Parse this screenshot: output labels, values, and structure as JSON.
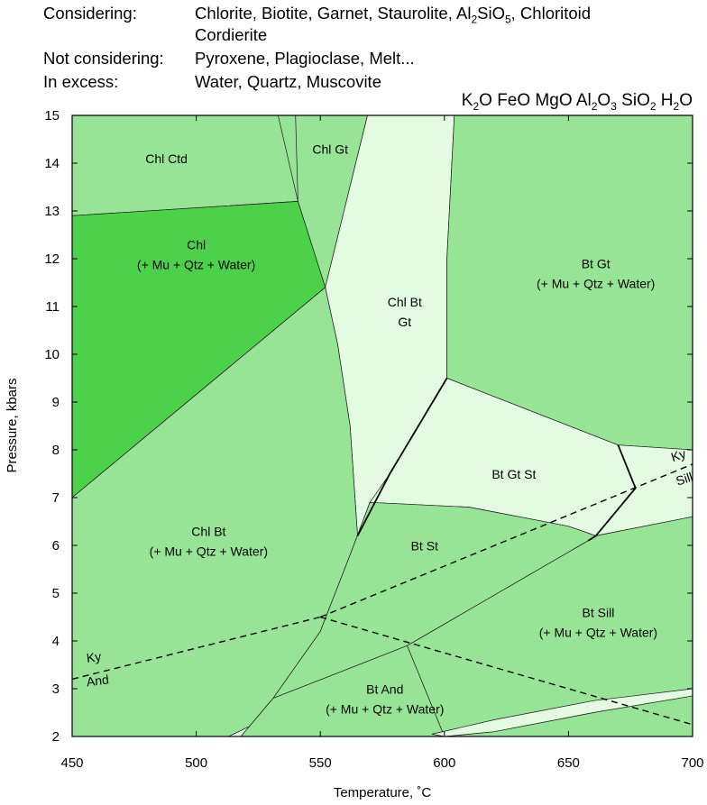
{
  "header": {
    "considering_label": "Considering:",
    "considering_values": "Chlorite, Biotite, Garnet, Staurolite, Al2SiO5, Chloritoid",
    "considering_values_line2": "Cordierite",
    "not_considering_label": "Not considering:",
    "not_considering_values": "Pyroxene, Plagioclase, Melt...",
    "in_excess_label": "In excess:",
    "in_excess_values": "Water, Quartz, Muscovite",
    "chemical_system": "K2O FeO MgO Al2O3 SiO2 H2O"
  },
  "colors": {
    "light_green": "#98e496",
    "pale_green": "#e3fbe0",
    "bright_green": "#4dd14b",
    "line": "#000000"
  },
  "chart_data": {
    "type": "area",
    "title": "",
    "xlabel": "Temperature, ˚C",
    "ylabel": "Pressure, kbars",
    "xlim": [
      450,
      700
    ],
    "ylim": [
      2,
      15
    ],
    "xticks": [
      450,
      500,
      550,
      600,
      650,
      700
    ],
    "yticks": [
      2,
      3,
      4,
      5,
      6,
      7,
      8,
      9,
      10,
      11,
      12,
      13,
      14,
      15
    ],
    "grid": false,
    "fields": [
      {
        "name": "chl-ctd",
        "label_lines": [
          "Chl Ctd"
        ],
        "label_at": [
          488,
          14.0
        ],
        "color": "light_green",
        "polygon": [
          [
            450,
            15
          ],
          [
            533,
            15
          ],
          [
            541,
            13.2
          ],
          [
            450,
            12.9
          ]
        ]
      },
      {
        "name": "chl-gt",
        "label_lines": [
          "Chl Gt"
        ],
        "label_at": [
          554,
          14.2
        ],
        "color": "light_green",
        "polygon": [
          [
            540,
            15
          ],
          [
            569,
            15
          ],
          [
            552,
            11.4
          ],
          [
            541,
            13.2
          ]
        ]
      },
      {
        "name": "chl",
        "label_lines": [
          "Chl",
          "(+ Mu + Qtz + Water)"
        ],
        "label_at": [
          500,
          12.2
        ],
        "color": "bright_green",
        "polygon": [
          [
            450,
            12.9
          ],
          [
            541,
            13.2
          ],
          [
            552,
            11.4
          ],
          [
            450,
            7.0
          ]
        ]
      },
      {
        "name": "chl-bt-gt",
        "label_lines": [
          "Chl Bt",
          "Gt"
        ],
        "label_at": [
          584,
          11.0
        ],
        "color": "pale_green",
        "polygon": [
          [
            569,
            15
          ],
          [
            604,
            15
          ],
          [
            601,
            12
          ],
          [
            601,
            9.5
          ],
          [
            578,
            7.5
          ],
          [
            565,
            6.2
          ],
          [
            562,
            8.5
          ],
          [
            557,
            10.2
          ],
          [
            552,
            11.4
          ]
        ]
      },
      {
        "name": "bt-gt",
        "label_lines": [
          "Bt Gt",
          "(+ Mu + Qtz + Water)"
        ],
        "label_at": [
          661,
          11.8
        ],
        "color": "light_green",
        "polygon": [
          [
            604,
            15
          ],
          [
            700,
            15
          ],
          [
            700,
            8.0
          ],
          [
            670,
            8.1
          ],
          [
            601,
            9.5
          ],
          [
            601,
            12
          ]
        ]
      },
      {
        "name": "bt-gt-st",
        "label_lines": [
          "Bt Gt St"
        ],
        "label_at": [
          628,
          7.4
        ],
        "color": "pale_green",
        "polygon": [
          [
            601,
            9.5
          ],
          [
            670,
            8.1
          ],
          [
            677,
            7.2
          ],
          [
            661,
            6.2
          ],
          [
            650,
            6.4
          ],
          [
            610,
            6.8
          ],
          [
            570,
            6.9
          ],
          [
            578,
            7.5
          ]
        ]
      },
      {
        "name": "ky-sill-field",
        "label_lines": [],
        "label_at": [
          690,
          7.0
        ],
        "color": "pale_green",
        "polygon": [
          [
            670,
            8.1
          ],
          [
            700,
            8.0
          ],
          [
            700,
            6.6
          ],
          [
            661,
            6.2
          ],
          [
            677,
            7.2
          ]
        ]
      },
      {
        "name": "chl-bt",
        "label_lines": [
          "Chl Bt",
          "(+ Mu + Qtz + Water)"
        ],
        "label_at": [
          505,
          6.2
        ],
        "color": "light_green",
        "polygon": [
          [
            450,
            7.0
          ],
          [
            552,
            11.4
          ],
          [
            557,
            10.2
          ],
          [
            562,
            8.5
          ],
          [
            565,
            6.2
          ],
          [
            570,
            6.9
          ],
          [
            565,
            6.0
          ],
          [
            555,
            4.5
          ],
          [
            545,
            3.3
          ],
          [
            533,
            2.5
          ],
          [
            513,
            2.0
          ],
          [
            450,
            2.0
          ]
        ]
      },
      {
        "name": "chl-bt-and-sliver",
        "label_lines": [],
        "label_at": [
          540,
          3.5
        ],
        "color": "pale_green",
        "polygon": [
          [
            570,
            6.9
          ],
          [
            565,
            6.0
          ],
          [
            555,
            4.5
          ],
          [
            545,
            3.3
          ],
          [
            533,
            2.5
          ],
          [
            513,
            2.0
          ],
          [
            518,
            2.0
          ],
          [
            531,
            2.8
          ],
          [
            550,
            4.2
          ],
          [
            562,
            5.8
          ]
        ]
      },
      {
        "name": "bt-st",
        "label_lines": [
          "Bt St"
        ],
        "label_at": [
          592,
          5.9
        ],
        "color": "light_green",
        "polygon": [
          [
            570,
            6.9
          ],
          [
            610,
            6.8
          ],
          [
            650,
            6.4
          ],
          [
            661,
            6.2
          ],
          [
            658,
            6.1
          ],
          [
            585,
            3.9
          ],
          [
            531,
            2.8
          ],
          [
            550,
            4.2
          ],
          [
            562,
            5.8
          ]
        ]
      },
      {
        "name": "bt-sill",
        "label_lines": [
          "Bt Sill",
          "(+ Mu + Qtz + Water)"
        ],
        "label_at": [
          662,
          4.5
        ],
        "color": "light_green",
        "polygon": [
          [
            661,
            6.2
          ],
          [
            700,
            6.6
          ],
          [
            700,
            3.0
          ],
          [
            660,
            2.5
          ],
          [
            620,
            2.1
          ],
          [
            600,
            2.0
          ],
          [
            600,
            2.0
          ],
          [
            585,
            3.9
          ],
          [
            658,
            6.1
          ]
        ]
      },
      {
        "name": "bt-and",
        "label_lines": [
          "Bt And",
          "(+ Mu + Qtz + Water)"
        ],
        "label_at": [
          576,
          2.9
        ],
        "color": "light_green",
        "polygon": [
          [
            531,
            2.8
          ],
          [
            585,
            3.9
          ],
          [
            600,
            2.0
          ],
          [
            518,
            2.0
          ]
        ]
      },
      {
        "name": "bt-and-sliver-2",
        "label_lines": [],
        "label_at": [
          650,
          2.4
        ],
        "color": "pale_green",
        "polygon": [
          [
            600,
            2.0
          ],
          [
            620,
            2.1
          ],
          [
            660,
            2.5
          ],
          [
            700,
            2.85
          ],
          [
            700,
            3.0
          ],
          [
            660,
            2.75
          ],
          [
            620,
            2.35
          ],
          [
            595,
            2.05
          ]
        ]
      }
    ],
    "solid_lines": [
      [
        [
          565,
          6.2
        ],
        [
          578,
          7.5
        ],
        [
          601,
          9.5
        ]
      ],
      [
        [
          677,
          7.2
        ],
        [
          670,
          8.1
        ]
      ],
      [
        [
          677,
          7.2
        ],
        [
          661,
          6.2
        ],
        [
          658,
          6.1
        ]
      ]
    ],
    "dashed_lines": [
      {
        "name": "ky-and",
        "points": [
          [
            450,
            3.2
          ],
          [
            550,
            4.5
          ]
        ]
      },
      {
        "name": "ky-sill",
        "points": [
          [
            550,
            4.5
          ],
          [
            700,
            7.7
          ]
        ]
      },
      {
        "name": "and-sill",
        "points": [
          [
            550,
            4.5
          ],
          [
            700,
            2.25
          ]
        ]
      }
    ],
    "annotations": [
      {
        "text": "Ky",
        "at": [
          456,
          3.55
        ],
        "angle": -7
      },
      {
        "text": "And",
        "at": [
          456,
          3.05
        ],
        "angle": -7
      },
      {
        "text": "Ky",
        "at": [
          692,
          7.75
        ],
        "angle": -18
      },
      {
        "text": "Sill",
        "at": [
          694,
          7.25
        ],
        "angle": -18
      }
    ]
  }
}
